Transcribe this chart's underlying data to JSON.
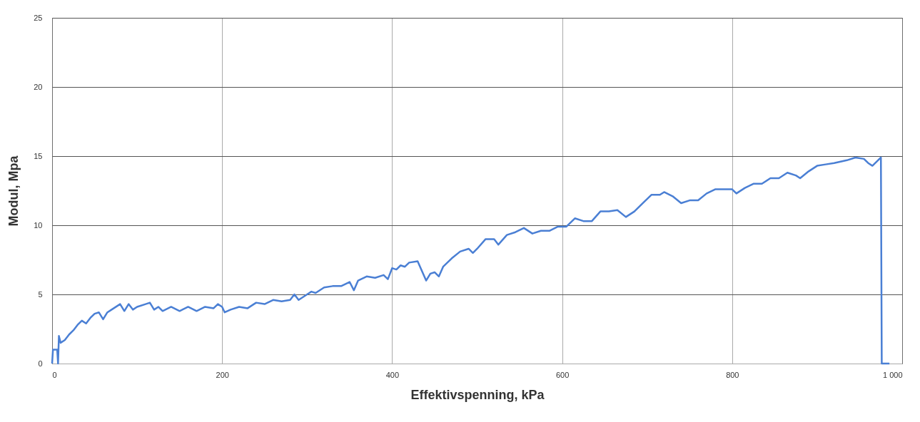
{
  "chart_data": {
    "type": "line",
    "xlabel": "Effektivspenning, kPa",
    "ylabel": "Modul, Mpa",
    "xlim": [
      0,
      1000
    ],
    "ylim": [
      0,
      25
    ],
    "xticks": [
      0,
      200,
      400,
      600,
      800,
      {
        "value": 1000,
        "label": "1 000"
      }
    ],
    "yticks": [
      0,
      5,
      10,
      15,
      20,
      25
    ],
    "grid": true,
    "marker": "none",
    "line_style": "solid",
    "series": [
      {
        "color": "#4a7fd4",
        "x": [
          0,
          1,
          6,
          7,
          8,
          10,
          15,
          20,
          25,
          30,
          35,
          40,
          45,
          50,
          55,
          60,
          65,
          70,
          80,
          85,
          90,
          95,
          100,
          110,
          115,
          120,
          125,
          130,
          140,
          150,
          160,
          170,
          180,
          190,
          195,
          200,
          203,
          210,
          220,
          230,
          240,
          250,
          260,
          270,
          280,
          285,
          290,
          300,
          305,
          310,
          320,
          330,
          340,
          350,
          355,
          360,
          370,
          380,
          390,
          395,
          400,
          405,
          410,
          415,
          420,
          430,
          435,
          440,
          445,
          450,
          455,
          460,
          470,
          480,
          490,
          495,
          500,
          510,
          520,
          525,
          535,
          545,
          555,
          565,
          575,
          585,
          595,
          605,
          615,
          625,
          635,
          645,
          655,
          665,
          675,
          685,
          695,
          705,
          715,
          720,
          730,
          740,
          750,
          760,
          770,
          780,
          790,
          800,
          805,
          815,
          825,
          835,
          845,
          855,
          865,
          875,
          880,
          890,
          900,
          910,
          920,
          935,
          945,
          955,
          960,
          965,
          975,
          976,
          985
        ],
        "values": [
          0,
          1.0,
          1.0,
          0,
          2.0,
          1.5,
          1.7,
          2.1,
          2.4,
          2.8,
          3.1,
          2.9,
          3.3,
          3.6,
          3.7,
          3.2,
          3.7,
          3.9,
          4.3,
          3.8,
          4.3,
          3.9,
          4.1,
          4.3,
          4.4,
          3.9,
          4.1,
          3.8,
          4.1,
          3.8,
          4.1,
          3.8,
          4.1,
          4.0,
          4.3,
          4.1,
          3.7,
          3.9,
          4.1,
          4.0,
          4.4,
          4.3,
          4.6,
          4.5,
          4.6,
          5.0,
          4.6,
          5.0,
          5.2,
          5.1,
          5.5,
          5.6,
          5.6,
          5.9,
          5.3,
          6.0,
          6.3,
          6.2,
          6.4,
          6.1,
          6.9,
          6.8,
          7.1,
          7.0,
          7.3,
          7.4,
          6.7,
          6.0,
          6.5,
          6.6,
          6.3,
          7.0,
          7.6,
          8.1,
          8.3,
          8.0,
          8.3,
          9.0,
          9.0,
          8.6,
          9.3,
          9.5,
          9.8,
          9.4,
          9.6,
          9.6,
          9.9,
          9.9,
          10.5,
          10.3,
          10.3,
          11.0,
          11.0,
          11.1,
          10.6,
          11.0,
          11.6,
          12.2,
          12.2,
          12.4,
          12.1,
          11.6,
          11.8,
          11.8,
          12.3,
          12.6,
          12.6,
          12.6,
          12.3,
          12.7,
          13.0,
          13.0,
          13.4,
          13.4,
          13.8,
          13.6,
          13.4,
          13.9,
          14.3,
          14.4,
          14.5,
          14.7,
          14.9,
          14.8,
          14.5,
          14.3,
          14.9,
          0,
          0
        ]
      }
    ]
  }
}
